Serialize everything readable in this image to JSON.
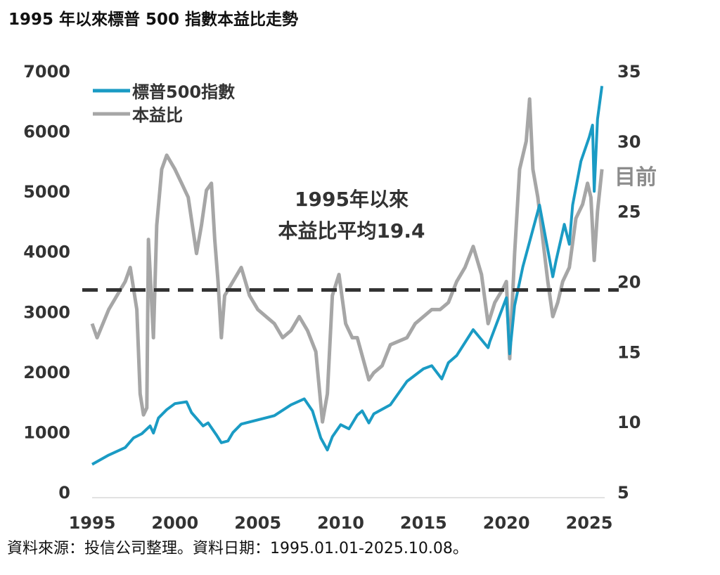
{
  "chart_data": {
    "type": "line",
    "title": "1995 年以來標普 500 指數本益比走勢",
    "legend_placement": "top-left",
    "x_ticks": [
      "1995",
      "2000",
      "2005",
      "2010",
      "2015",
      "2020",
      "2025"
    ],
    "xlim": [
      1995,
      2025
    ],
    "y_left": {
      "ticks": [
        "0",
        "1000",
        "2000",
        "3000",
        "4000",
        "5000",
        "6000",
        "7000"
      ],
      "ylim": [
        0,
        7000
      ]
    },
    "y_right": {
      "ticks": [
        "5",
        "10",
        "15",
        "20",
        "25",
        "30",
        "35"
      ],
      "ylim": [
        5,
        35
      ]
    },
    "grid": false,
    "series": [
      {
        "name": "標普500指數",
        "axis": "left",
        "color": "#1a9bc4",
        "x": [
          1995,
          1996,
          1997,
          1997.5,
          1998,
          1998.5,
          1998.7,
          1999,
          1999.5,
          2000,
          2000.7,
          2001,
          2001.7,
          2002,
          2002.5,
          2002.8,
          2003.2,
          2003.5,
          2004,
          2005,
          2006,
          2007,
          2007.8,
          2008.3,
          2008.8,
          2009.2,
          2009.5,
          2010,
          2010.5,
          2011,
          2011.3,
          2011.7,
          2012,
          2013,
          2014,
          2015,
          2015.5,
          2016.1,
          2016.5,
          2017,
          2018,
          2018.9,
          2019,
          2020,
          2020.2,
          2020.5,
          2021,
          2022,
          2022.8,
          2023,
          2023.5,
          2023.8,
          2024,
          2024.5,
          2025,
          2025.2,
          2025.3,
          2025.5,
          2025.77
        ],
        "y": [
          460,
          615,
          740,
          900,
          970,
          1100,
          980,
          1230,
          1370,
          1470,
          1500,
          1320,
          1100,
          1150,
          950,
          820,
          850,
          990,
          1130,
          1200,
          1270,
          1450,
          1550,
          1350,
          900,
          700,
          920,
          1120,
          1050,
          1280,
          1350,
          1150,
          1300,
          1450,
          1840,
          2050,
          2100,
          1880,
          2150,
          2270,
          2700,
          2400,
          2500,
          3230,
          2300,
          3100,
          3750,
          4770,
          3580,
          3850,
          4450,
          4120,
          4770,
          5500,
          5900,
          6100,
          5000,
          6200,
          6750
        ]
      },
      {
        "name": "本益比",
        "axis": "right",
        "color": "#a6a6a6",
        "x": [
          1995,
          1995.3,
          1996,
          1997,
          1997.3,
          1997.7,
          1997.9,
          1998.1,
          1998.3,
          1998.4,
          1998.7,
          1998.9,
          1999.2,
          1999.5,
          2000,
          2000.4,
          2000.8,
          2001.3,
          2001.6,
          2001.9,
          2002.2,
          2002.4,
          2002.6,
          2002.8,
          2003,
          2003.5,
          2004,
          2004.5,
          2005,
          2006,
          2006.5,
          2007,
          2007.5,
          2008,
          2008.5,
          2008.9,
          2009.2,
          2009.5,
          2009.9,
          2010.3,
          2010.7,
          2011,
          2011.7,
          2012,
          2012.5,
          2013,
          2014,
          2014.5,
          2015,
          2015.5,
          2016,
          2016.5,
          2017,
          2017.5,
          2018,
          2018.5,
          2018.9,
          2019.3,
          2019.8,
          2020,
          2020.2,
          2020.5,
          2020.8,
          2021.2,
          2021.4,
          2021.6,
          2021.9,
          2022.2,
          2022.5,
          2022.8,
          2023.1,
          2023.4,
          2023.8,
          2024.2,
          2024.6,
          2024.9,
          2025.1,
          2025.3,
          2025.5,
          2025.77
        ],
        "y": [
          17,
          16,
          18,
          20,
          21,
          18,
          12,
          10.5,
          11,
          23,
          16,
          24,
          28,
          29,
          28,
          27,
          26,
          22,
          24,
          26.5,
          27,
          23,
          20,
          16,
          19,
          20,
          21,
          19,
          18,
          17,
          16,
          16.5,
          17.5,
          16.5,
          15,
          10,
          12,
          19,
          20.5,
          17,
          16,
          16,
          13,
          13.5,
          14,
          15.5,
          16,
          17,
          17.5,
          18,
          18,
          18.5,
          20,
          21,
          22.5,
          20.5,
          17,
          18.5,
          19.5,
          20,
          14.5,
          22,
          28,
          30,
          33,
          28,
          26,
          23,
          20,
          17.5,
          18.5,
          20,
          21,
          24.5,
          25.5,
          27,
          26,
          21.5,
          25,
          28
        ]
      }
    ],
    "reference_line": {
      "axis": "right",
      "value": 19.4,
      "style": "dashed",
      "color": "#333333"
    },
    "annotations": {
      "average_line1": "1995年以來",
      "average_line2": "本益比平均19.4",
      "current": "目前"
    }
  },
  "source": "資料來源：投信公司整理。資料日期：1995.01.01-2025.10.08。"
}
